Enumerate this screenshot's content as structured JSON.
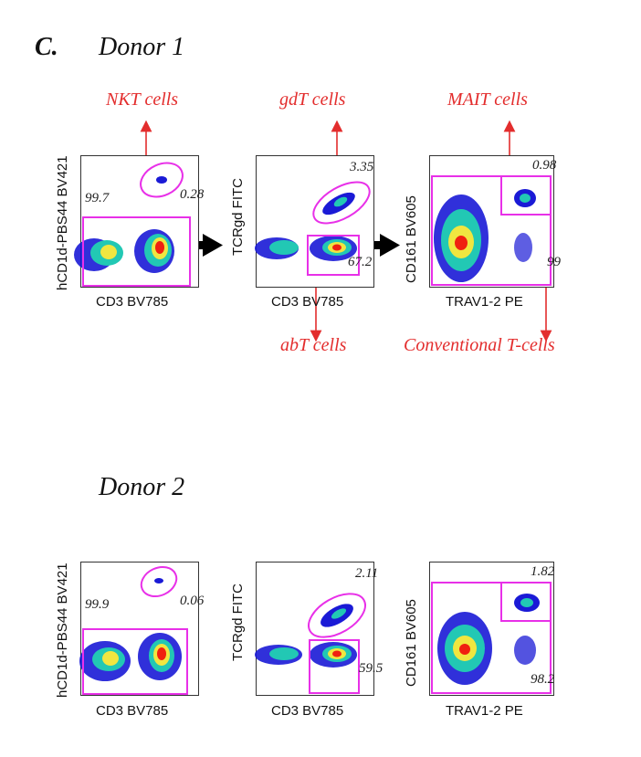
{
  "panel_letter": "C.",
  "donors": [
    {
      "title": "Donor 1",
      "plots": [
        {
          "x_label": "CD3 BV785",
          "y_label": "hCD1d-PBS44 BV421",
          "gates": [
            {
              "population": "NKT cells",
              "percent": "0.28"
            },
            {
              "population": "",
              "percent": "99.7"
            }
          ]
        },
        {
          "x_label": "CD3 BV785",
          "y_label": "TCRgd FITC",
          "gates": [
            {
              "population": "gdT cells",
              "percent": "3.35"
            },
            {
              "population": "abT cells",
              "percent": "67.2"
            }
          ]
        },
        {
          "x_label": "TRAV1-2 PE",
          "y_label": "CD161 BV605",
          "gates": [
            {
              "population": "MAIT cells",
              "percent": "0.98"
            },
            {
              "population": "Conventional T-cells",
              "percent": "99"
            }
          ]
        }
      ]
    },
    {
      "title": "Donor 2",
      "plots": [
        {
          "x_label": "CD3 BV785",
          "y_label": "hCD1d-PBS44 BV421",
          "gates": [
            {
              "percent": "0.06"
            },
            {
              "percent": "99.9"
            }
          ]
        },
        {
          "x_label": "CD3 BV785",
          "y_label": "TCRgd FITC",
          "gates": [
            {
              "percent": "2.11"
            },
            {
              "percent": "59.5"
            }
          ]
        },
        {
          "x_label": "TRAV1-2 PE",
          "y_label": "CD161 BV605",
          "gates": [
            {
              "percent": "1.82"
            },
            {
              "percent": "98.2"
            }
          ]
        }
      ]
    }
  ],
  "colors": {
    "gate": "#e830e8",
    "annotation": "#e32d2d",
    "flow_arrow": "#000000",
    "density_low": "#1a1ad6",
    "density_mid": "#22c8b4",
    "density_high": "#f02010"
  }
}
